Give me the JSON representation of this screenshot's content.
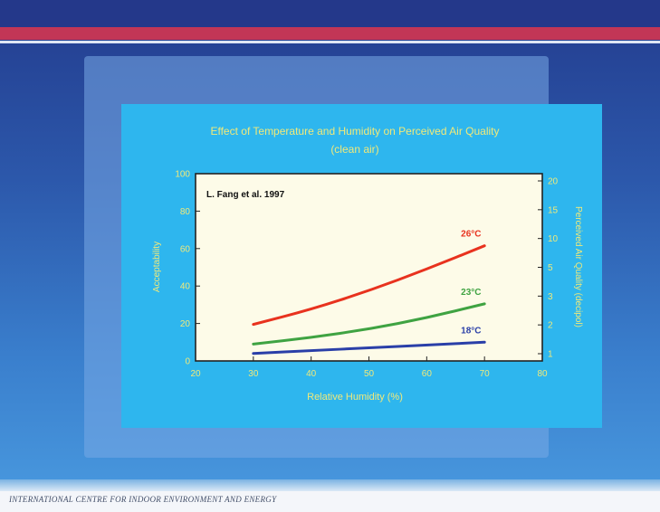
{
  "footer": {
    "text": "INTERNATIONAL CENTRE FOR INDOOR ENVIRONMENT AND ENERGY"
  },
  "colors": {
    "axis_text": "#f0e97a",
    "plot_background": "#fdfbe8",
    "panel": "#2eb6ee"
  },
  "chart_data": {
    "type": "line",
    "title": "Effect of Temperature and Humidity on Perceived Air Quality",
    "subtitle": "(clean air)",
    "xlabel": "Relative Humidity (%)",
    "ylabel": "Acceptability",
    "ylabel_right": "Perceived Air Quality (decipol)",
    "annotation": "L. Fang et al. 1997",
    "xlim": [
      20,
      80
    ],
    "ylim": [
      0,
      100
    ],
    "x_ticks": [
      "20",
      "30",
      "40",
      "50",
      "60",
      "70",
      "80"
    ],
    "y_ticks": [
      "0",
      "20",
      "40",
      "60",
      "80",
      "100"
    ],
    "y2_ticks": [
      "1",
      "2",
      "3",
      "5",
      "10",
      "15",
      "20"
    ],
    "x": [
      30,
      40,
      50,
      60,
      70
    ],
    "series": [
      {
        "name": "26°C",
        "color": "#e8321e",
        "values": [
          19.5,
          27.5,
          37.5,
          49,
          61.5
        ]
      },
      {
        "name": "23°C",
        "color": "#3fa342",
        "values": [
          9,
          12.5,
          17,
          23,
          30.5
        ]
      },
      {
        "name": "18°C",
        "color": "#2a3fa8",
        "values": [
          4,
          5.5,
          7,
          8.5,
          10
        ]
      }
    ]
  }
}
